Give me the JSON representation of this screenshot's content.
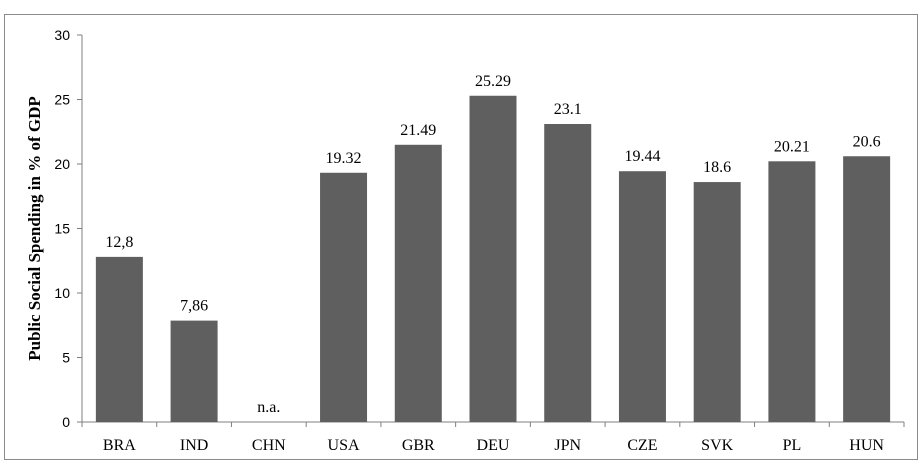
{
  "chart_data": {
    "type": "bar",
    "categories": [
      "BRA",
      "IND",
      "CHN",
      "USA",
      "GBR",
      "DEU",
      "JPN",
      "CZE",
      "SVK",
      "PL",
      "HUN"
    ],
    "values": [
      12.8,
      7.86,
      null,
      19.32,
      21.49,
      25.29,
      23.1,
      19.44,
      18.6,
      20.21,
      20.6
    ],
    "data_labels": [
      "12,8",
      "7,86",
      "n.a.",
      "19.32",
      "21.49",
      "25.29",
      "23.1",
      "19.44",
      "18.6",
      "20.21",
      "20.6"
    ],
    "title": "",
    "xlabel": "",
    "ylabel": "Public Social Spending in % of GDP",
    "ylim": [
      0,
      30
    ],
    "yticks": [
      0,
      5,
      10,
      15,
      20,
      25,
      30
    ],
    "grid": false,
    "legend": "none",
    "bar_color": "#5f5f5f",
    "axis_color": "#7f7f7f"
  }
}
